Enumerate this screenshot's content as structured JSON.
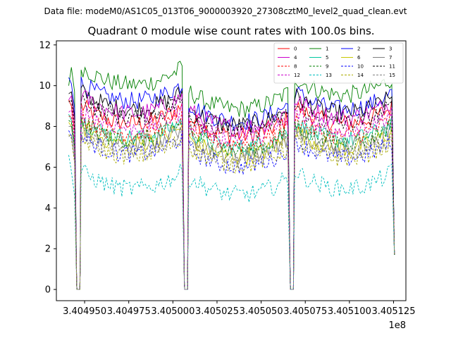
{
  "header": {
    "file_label": "Data file: modeM0/AS1C05_013T06_9000003920_27308cztM0_level2_quad_clean.evt"
  },
  "chart_data": {
    "type": "line",
    "title": "Quadrant 0 module wise count rates with 100.0s bins.",
    "xlabel": "",
    "ylabel": "",
    "x_offset_label": "1e8",
    "xlim": [
      3.404934,
      3.405132
    ],
    "ylim": [
      -0.55,
      12.2
    ],
    "xticks": [
      3.40495,
      3.404975,
      3.405,
      3.405025,
      3.40505,
      3.405075,
      3.4051,
      3.405125
    ],
    "xtick_labels": [
      "3.404950",
      "3.404975",
      "3.405000",
      "3.405025",
      "3.405050",
      "3.405075",
      "3.405100",
      "3.405125"
    ],
    "yticks": [
      0,
      2,
      4,
      6,
      8,
      10,
      12
    ],
    "ytick_labels": [
      "0",
      "2",
      "4",
      "6",
      "8",
      "10",
      "12"
    ],
    "legend_position": "top-right",
    "segments": [
      [
        3.404941,
        3.4049455
      ],
      [
        3.4049475,
        3.4050065
      ],
      [
        3.4050085,
        3.4050665
      ],
      [
        3.4050685,
        3.4051255
      ]
    ],
    "gaps": [
      [
        3.4049455,
        3.4049475
      ],
      [
        3.4050065,
        3.4050085
      ],
      [
        3.4050665,
        3.4050685
      ]
    ],
    "series": [
      {
        "name": "0",
        "color": "#ff0000",
        "style": "solid",
        "start_value": 9.3,
        "levels": [
          8.6,
          8.0,
          8.6
        ]
      },
      {
        "name": "1",
        "color": "#008000",
        "style": "solid",
        "start_value": 10.0,
        "levels": [
          10.5,
          9.3,
          10.0
        ]
      },
      {
        "name": "2",
        "color": "#0000ff",
        "style": "solid",
        "start_value": 10.4,
        "levels": [
          9.7,
          8.7,
          9.3
        ]
      },
      {
        "name": "3",
        "color": "#000000",
        "style": "solid",
        "start_value": 9.6,
        "levels": [
          9.3,
          8.5,
          9.1
        ]
      },
      {
        "name": "4",
        "color": "#cc00cc",
        "style": "solid",
        "start_value": 9.3,
        "levels": [
          9.1,
          8.4,
          8.9
        ]
      },
      {
        "name": "5",
        "color": "#00c8a0",
        "style": "solid",
        "start_value": 8.6,
        "levels": [
          7.9,
          7.4,
          7.8
        ]
      },
      {
        "name": "6",
        "color": "#c8c800",
        "style": "solid",
        "start_value": 8.2,
        "levels": [
          7.6,
          7.0,
          7.4
        ]
      },
      {
        "name": "7",
        "color": "#808080",
        "style": "solid",
        "start_value": 8.0,
        "levels": [
          7.6,
          7.1,
          7.5
        ]
      },
      {
        "name": "8",
        "color": "#ff0000",
        "style": "dashed",
        "start_value": 8.5,
        "levels": [
          8.1,
          7.6,
          8.0
        ]
      },
      {
        "name": "9",
        "color": "#008000",
        "style": "dashed",
        "start_value": 8.3,
        "levels": [
          7.8,
          7.3,
          7.7
        ]
      },
      {
        "name": "10",
        "color": "#0000ff",
        "style": "dashed",
        "start_value": 7.8,
        "levels": [
          7.1,
          6.5,
          6.9
        ]
      },
      {
        "name": "11",
        "color": "#000000",
        "style": "dashed",
        "start_value": 9.2,
        "levels": [
          8.9,
          8.2,
          8.6
        ]
      },
      {
        "name": "12",
        "color": "#cc00cc",
        "style": "dashed",
        "start_value": 8.7,
        "levels": [
          8.4,
          7.9,
          8.3
        ]
      },
      {
        "name": "13",
        "color": "#00bfbf",
        "style": "dashed",
        "start_value": 6.6,
        "levels": [
          5.4,
          5.1,
          5.4
        ]
      },
      {
        "name": "14",
        "color": "#aaaa00",
        "style": "dashed",
        "start_value": 7.6,
        "levels": [
          7.0,
          6.6,
          6.9
        ]
      },
      {
        "name": "15",
        "color": "#808080",
        "style": "dashed",
        "start_value": 7.5,
        "levels": [
          7.2,
          6.8,
          7.1
        ]
      }
    ]
  }
}
